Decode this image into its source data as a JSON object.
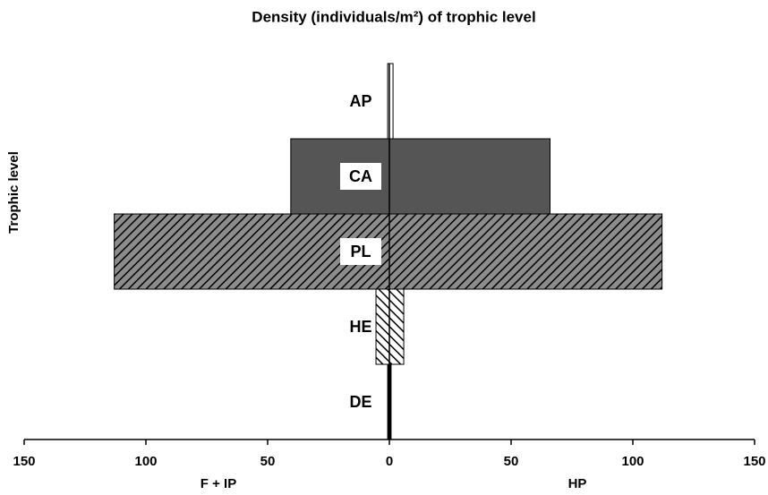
{
  "chart_data": {
    "type": "diverging-bar",
    "title": "Density (individuals/m²) of trophic level",
    "y_label": "Trophic level",
    "categories": [
      "DE",
      "HE",
      "PL",
      "CA",
      "AP"
    ],
    "series": [
      {
        "name": "F + IP",
        "values": [
          -0.7,
          -5.5,
          -113,
          -40.5,
          -0.7
        ]
      },
      {
        "name": "HP",
        "values": [
          0.7,
          5.9,
          112,
          66,
          1.5
        ]
      }
    ],
    "colors": [
      "#000000",
      "#ffffff",
      "#8c8c8c",
      "#555555",
      "#ffffff"
    ],
    "hatch": [
      "none",
      "back",
      "forward",
      "none",
      "none"
    ],
    "xlim": [
      -150,
      150
    ],
    "xticks": [
      {
        "value": -150,
        "label": "150"
      },
      {
        "value": -100,
        "label": "100"
      },
      {
        "value": -50,
        "label": "50"
      },
      0,
      50,
      100,
      150
    ]
  }
}
